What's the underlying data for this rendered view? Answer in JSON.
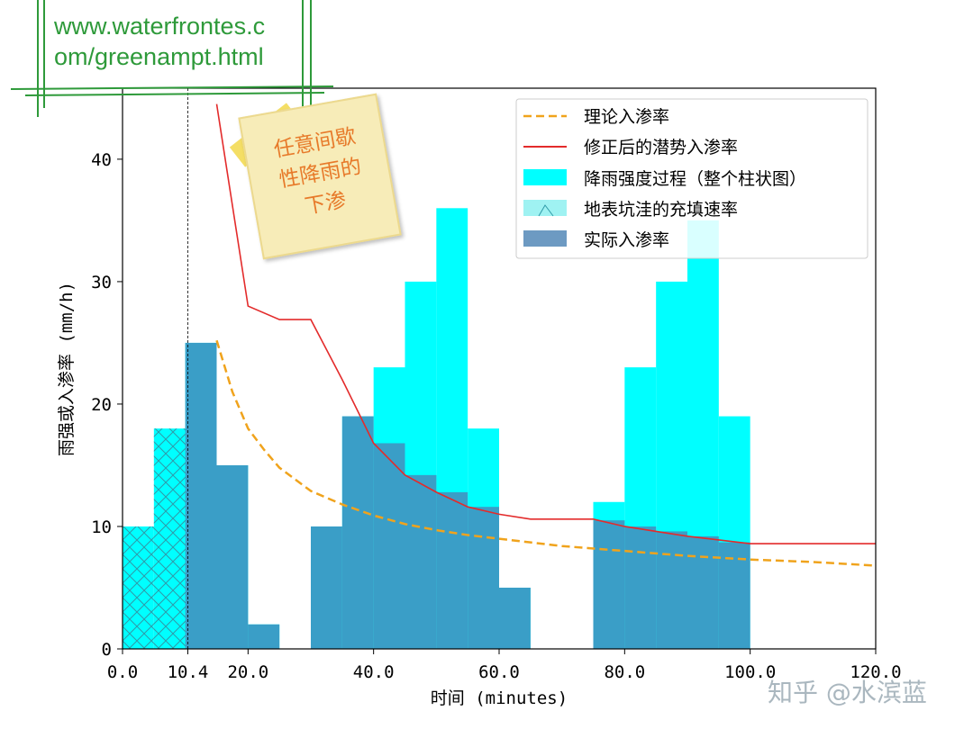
{
  "website": {
    "line1": "www.waterfrontes.c",
    "line2": "om/greenampt.html"
  },
  "sticky_note": {
    "line1": "任意间歇",
    "line2": "性降雨的",
    "line3": "下渗"
  },
  "watermark": "知乎 @水滨蓝",
  "colors": {
    "rainfall": "#00ffff",
    "actual_infiltration": "#3a9ec7",
    "theoretical_line": "#f0a31c",
    "corrected_line": "#e32b2b",
    "depression_fill": "#9ff2f2",
    "legend_actual_swatch": "#6d9ac2",
    "grid_green": "#2e9a3a"
  },
  "chart_data": {
    "type": "bar",
    "xlabel": "时间 (minutes)",
    "ylabel": "雨强或入渗率 (mm/h)",
    "xlim": [
      0,
      120
    ],
    "ylim": [
      0,
      45.8
    ],
    "x_ticks": [
      {
        "value": 0,
        "label": "0.0"
      },
      {
        "value": 10.4,
        "label": "10.4"
      },
      {
        "value": 20,
        "label": "20.0"
      },
      {
        "value": 40,
        "label": "40.0"
      },
      {
        "value": 60,
        "label": "60.0"
      },
      {
        "value": 80,
        "label": "80.0"
      },
      {
        "value": 100,
        "label": "100.0"
      },
      {
        "value": 120,
        "label": "120.0"
      }
    ],
    "y_ticks": [
      {
        "value": 0,
        "label": "0"
      },
      {
        "value": 10,
        "label": "10"
      },
      {
        "value": 20,
        "label": "20"
      },
      {
        "value": 30,
        "label": "30"
      },
      {
        "value": 40,
        "label": "40"
      }
    ],
    "ponding_time": 10.4,
    "bar_width": 5,
    "rainfall": {
      "name": "降雨强度过程（整个柱状图）",
      "x_start": [
        0,
        5,
        10,
        15,
        20,
        30,
        35,
        40,
        45,
        50,
        55,
        60,
        75,
        80,
        85,
        90,
        95
      ],
      "values": [
        10,
        18,
        25,
        15,
        2,
        10,
        19,
        23,
        30,
        36,
        18,
        5,
        12,
        23,
        30,
        35,
        19
      ]
    },
    "actual_infiltration": {
      "name": "实际入渗率",
      "x_start": [
        10,
        15,
        20,
        30,
        35,
        40,
        45,
        50,
        55,
        60,
        75,
        80,
        85,
        90,
        95
      ],
      "values": [
        25,
        15,
        2,
        10,
        19,
        16.8,
        14.2,
        12.8,
        11.6,
        5,
        10.5,
        10.0,
        9.6,
        9.2,
        8.7
      ]
    },
    "depression_filling": {
      "name": "地表坑洼的充填速率",
      "x_start": [
        0,
        5
      ],
      "x_end": [
        5,
        10.4
      ],
      "values": [
        10,
        18
      ]
    },
    "series": [
      {
        "name": "理论入渗率",
        "x": [
          15,
          17.5,
          20,
          22.5,
          25,
          30,
          35,
          40,
          45,
          50,
          55,
          60,
          65,
          70,
          80,
          90,
          100,
          110,
          120
        ],
        "values": [
          25.2,
          21.0,
          18.0,
          16.3,
          14.8,
          12.9,
          11.8,
          10.9,
          10.2,
          9.7,
          9.3,
          9.0,
          8.7,
          8.4,
          8.0,
          7.6,
          7.3,
          7.1,
          6.8
        ]
      },
      {
        "name": "修正后的潜势入渗率",
        "x": [
          15,
          20,
          25,
          30,
          35,
          40,
          45,
          50,
          55,
          60,
          65,
          70,
          75,
          80,
          85,
          90,
          95,
          100,
          110,
          120
        ],
        "values": [
          44.5,
          28.0,
          26.9,
          26.9,
          22.0,
          16.8,
          14.2,
          12.8,
          11.6,
          11.0,
          10.6,
          10.6,
          10.6,
          10.0,
          9.6,
          9.2,
          8.9,
          8.6,
          8.6,
          8.6
        ]
      }
    ]
  }
}
